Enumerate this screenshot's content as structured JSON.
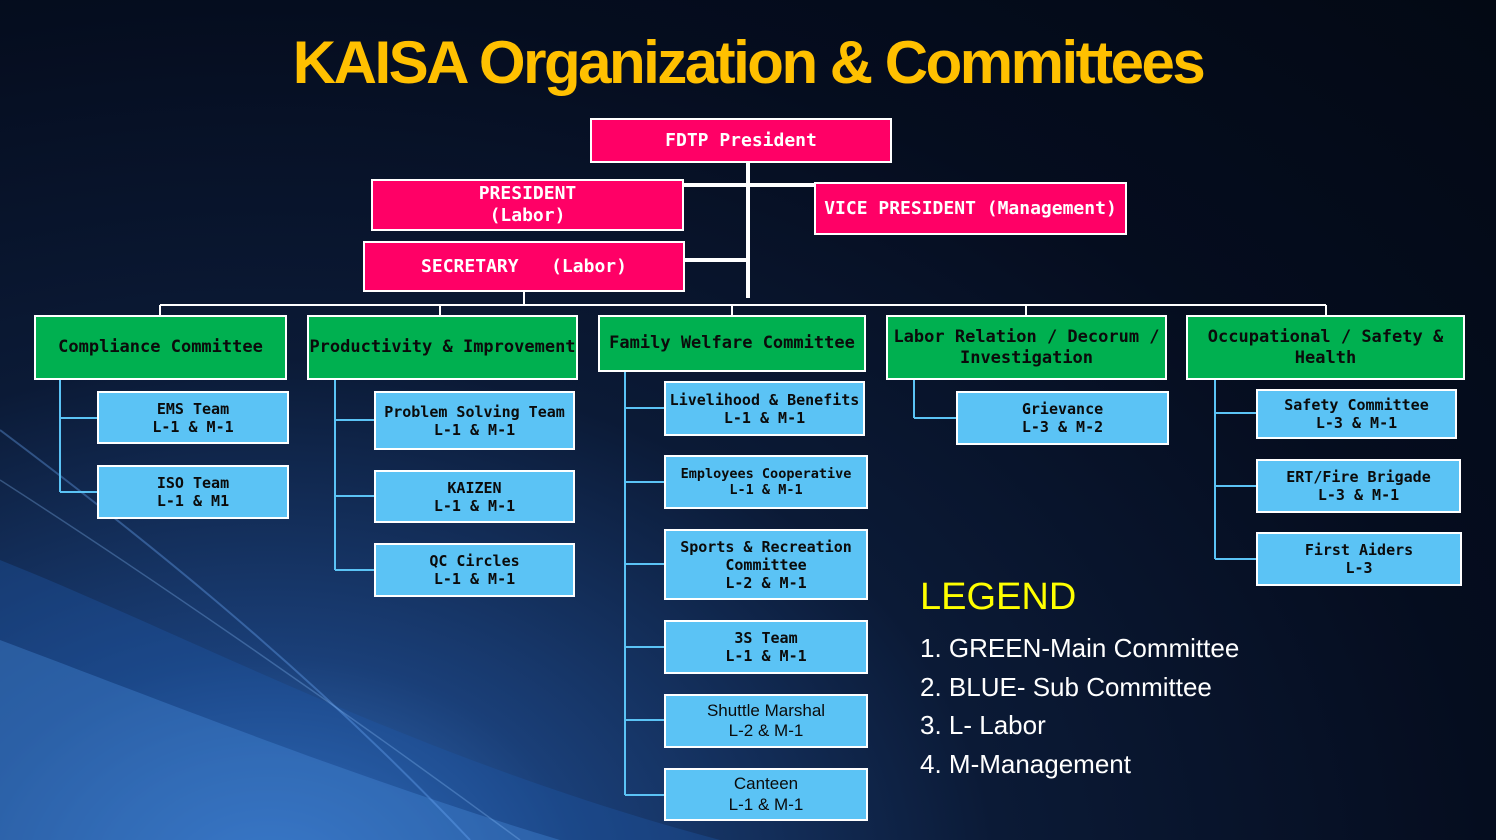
{
  "title": "KAISA Organization & Committees",
  "colors": {
    "leader": "#ff0066",
    "main_committee": "#00b050",
    "sub_committee": "#5bc3f5",
    "title": "#ffc000",
    "legend_title": "#ffff00"
  },
  "leaders": {
    "fdtp_president": "FDTP President",
    "president": [
      "PRESIDENT",
      "(Labor)"
    ],
    "vice_president": "VICE PRESIDENT (Management)",
    "secretary": "SECRETARY   (Labor)"
  },
  "committees": [
    {
      "name": "Compliance Committee",
      "subs": [
        {
          "name": "EMS Team",
          "rep": "L-1 & M-1"
        },
        {
          "name": "ISO Team",
          "rep": "L-1 & M1"
        }
      ]
    },
    {
      "name": "Productivity & Improvement",
      "subs": [
        {
          "name": "Problem Solving Team",
          "rep": "L-1 & M-1"
        },
        {
          "name": "KAIZEN",
          "rep": "L-1 & M-1"
        },
        {
          "name": "QC Circles",
          "rep": "L-1 & M-1"
        }
      ]
    },
    {
      "name": "Family Welfare Committee",
      "subs": [
        {
          "name": "Livelihood & Benefits",
          "rep": "L-1 & M-1"
        },
        {
          "name": "Employees Cooperative",
          "rep": "L-1 & M-1"
        },
        {
          "name": "Sports & Recreation",
          "name2": "Committee",
          "rep": "L-2 & M-1"
        },
        {
          "name": "3S Team",
          "rep": "L-1 & M-1"
        },
        {
          "name": "Shuttle Marshal",
          "rep": "L-2 & M-1"
        },
        {
          "name": "Canteen",
          "rep": "L-1 & M-1"
        }
      ]
    },
    {
      "name": "Labor Relation / Decorum /",
      "name2": "Investigation",
      "subs": [
        {
          "name": "Grievance",
          "rep": "L-3 & M-2"
        }
      ]
    },
    {
      "name": "Occupational / Safety & Health",
      "subs": [
        {
          "name": "Safety Committee",
          "rep": "L-3 & M-1"
        },
        {
          "name": "ERT/Fire Brigade",
          "rep": "L-3 & M-1"
        },
        {
          "name": "First Aiders",
          "rep": "L-3"
        }
      ]
    }
  ],
  "legend": {
    "title": "LEGEND",
    "items": [
      "1. GREEN-Main Committee",
      "2. BLUE- Sub Committee",
      "3. L- Labor",
      "4. M-Management"
    ]
  }
}
